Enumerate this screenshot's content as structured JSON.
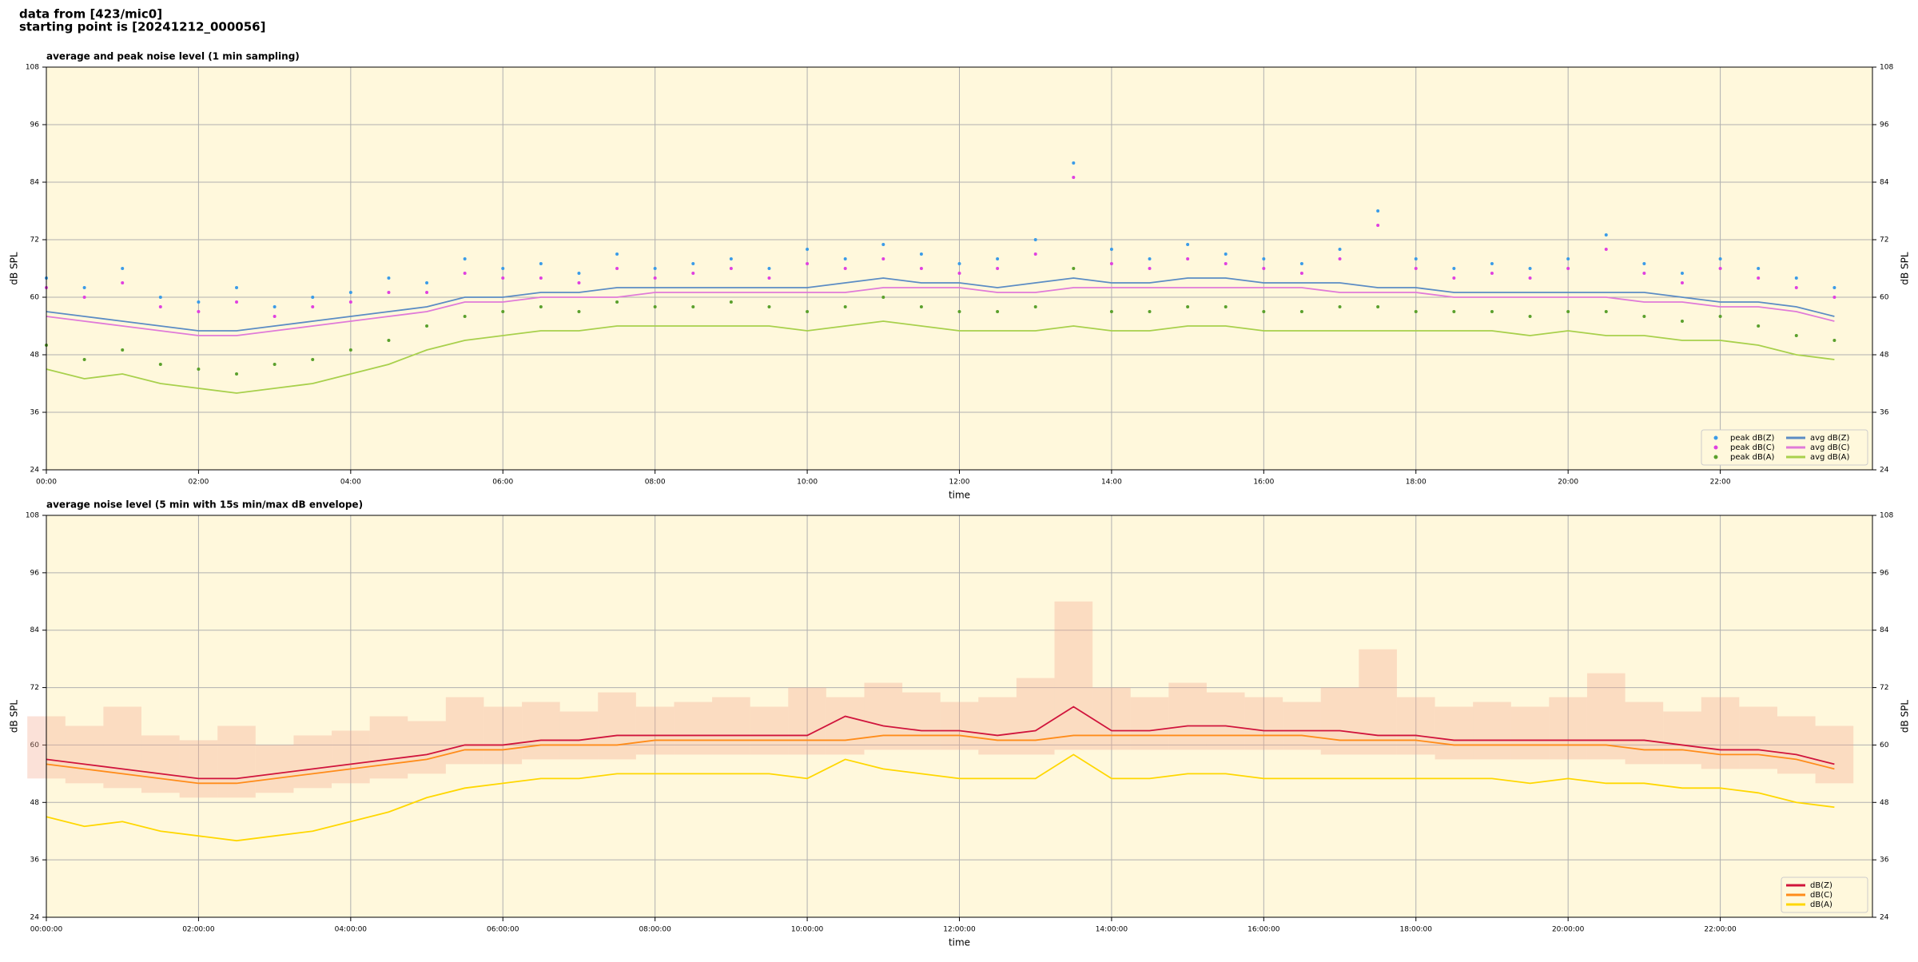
{
  "page_title": [
    "data from [423/mic0]",
    "starting point is [20241212_000056]"
  ],
  "chart_data": [
    {
      "type": "line",
      "title": "average and peak noise level (1 min sampling)",
      "xlabel": "time",
      "ylabel": "dB SPL",
      "xlim": [
        0,
        24
      ],
      "ylim": [
        24,
        108
      ],
      "yticks": [
        24,
        36,
        48,
        60,
        72,
        84,
        96,
        108
      ],
      "xticks": [
        {
          "value": 0,
          "label": "00:00"
        },
        {
          "value": 2,
          "label": "02:00"
        },
        {
          "value": 4,
          "label": "04:00"
        },
        {
          "value": 6,
          "label": "06:00"
        },
        {
          "value": 8,
          "label": "08:00"
        },
        {
          "value": 10,
          "label": "10:00"
        },
        {
          "value": 12,
          "label": "12:00"
        },
        {
          "value": 14,
          "label": "14:00"
        },
        {
          "value": 16,
          "label": "16:00"
        },
        {
          "value": 18,
          "label": "18:00"
        },
        {
          "value": 20,
          "label": "20:00"
        },
        {
          "value": 22,
          "label": "22:00"
        }
      ],
      "grid": true,
      "legend": "lower right",
      "x": [
        0,
        0.5,
        1,
        1.5,
        2,
        2.5,
        3,
        3.5,
        4,
        4.5,
        5,
        5.5,
        6,
        6.5,
        7,
        7.5,
        8,
        8.5,
        9,
        9.5,
        10,
        10.5,
        11,
        11.5,
        12,
        12.5,
        13,
        13.5,
        14,
        14.5,
        15,
        15.5,
        16,
        16.5,
        17,
        17.5,
        18,
        18.5,
        19,
        19.5,
        20,
        20.5,
        21,
        21.5,
        22,
        22.5,
        23,
        23.5
      ],
      "series": [
        {
          "name": "peak dB(Z)",
          "type": "scatter",
          "color": "#3a9be8",
          "values": [
            64,
            62,
            66,
            60,
            59,
            62,
            58,
            60,
            61,
            64,
            63,
            68,
            66,
            67,
            65,
            69,
            66,
            67,
            68,
            66,
            70,
            68,
            71,
            69,
            67,
            68,
            72,
            88,
            70,
            68,
            71,
            69,
            68,
            67,
            70,
            78,
            68,
            66,
            67,
            66,
            68,
            73,
            67,
            65,
            68,
            66,
            64,
            62
          ]
        },
        {
          "name": "peak dB(C)",
          "type": "scatter",
          "color": "#e040e0",
          "values": [
            62,
            60,
            63,
            58,
            57,
            59,
            56,
            58,
            59,
            61,
            61,
            65,
            64,
            64,
            63,
            66,
            64,
            65,
            66,
            64,
            67,
            66,
            68,
            66,
            65,
            66,
            69,
            85,
            67,
            66,
            68,
            67,
            66,
            65,
            68,
            75,
            66,
            64,
            65,
            64,
            66,
            70,
            65,
            63,
            66,
            64,
            62,
            60
          ]
        },
        {
          "name": "peak dB(A)",
          "type": "scatter",
          "color": "#5aa02c",
          "values": [
            50,
            47,
            49,
            46,
            45,
            44,
            46,
            47,
            49,
            51,
            54,
            56,
            57,
            58,
            57,
            59,
            58,
            58,
            59,
            58,
            57,
            58,
            60,
            58,
            57,
            57,
            58,
            66,
            57,
            57,
            58,
            58,
            57,
            57,
            58,
            58,
            57,
            57,
            57,
            56,
            57,
            57,
            56,
            55,
            56,
            54,
            52,
            51
          ]
        },
        {
          "name": "avg dB(Z)",
          "type": "line",
          "color": "#5b8cc4",
          "values": [
            57,
            56,
            55,
            54,
            53,
            53,
            54,
            55,
            56,
            57,
            58,
            60,
            60,
            61,
            61,
            62,
            62,
            62,
            62,
            62,
            62,
            63,
            64,
            63,
            63,
            62,
            63,
            64,
            63,
            63,
            64,
            64,
            63,
            63,
            63,
            62,
            62,
            61,
            61,
            61,
            61,
            61,
            61,
            60,
            59,
            59,
            58,
            56
          ]
        },
        {
          "name": "avg dB(C)",
          "type": "line",
          "color": "#e07ad8",
          "values": [
            56,
            55,
            54,
            53,
            52,
            52,
            53,
            54,
            55,
            56,
            57,
            59,
            59,
            60,
            60,
            60,
            61,
            61,
            61,
            61,
            61,
            61,
            62,
            62,
            62,
            61,
            61,
            62,
            62,
            62,
            62,
            62,
            62,
            62,
            61,
            61,
            61,
            60,
            60,
            60,
            60,
            60,
            59,
            59,
            58,
            58,
            57,
            55
          ]
        },
        {
          "name": "avg dB(A)",
          "type": "line",
          "color": "#a8d04c",
          "values": [
            45,
            43,
            44,
            42,
            41,
            40,
            41,
            42,
            44,
            46,
            49,
            51,
            52,
            53,
            53,
            54,
            54,
            54,
            54,
            54,
            53,
            54,
            55,
            54,
            53,
            53,
            53,
            54,
            53,
            53,
            54,
            54,
            53,
            53,
            53,
            53,
            53,
            53,
            53,
            52,
            53,
            52,
            52,
            51,
            51,
            50,
            48,
            47
          ]
        }
      ]
    },
    {
      "type": "line",
      "title": "average noise level (5 min with 15s min/max dB envelope)",
      "xlabel": "time",
      "ylabel": "dB SPL",
      "xlim": [
        0,
        24
      ],
      "ylim": [
        24,
        108
      ],
      "yticks": [
        24,
        36,
        48,
        60,
        72,
        84,
        96,
        108
      ],
      "xticks": [
        {
          "value": 0,
          "label": "00:00:00"
        },
        {
          "value": 2,
          "label": "02:00:00"
        },
        {
          "value": 4,
          "label": "04:00:00"
        },
        {
          "value": 6,
          "label": "06:00:00"
        },
        {
          "value": 8,
          "label": "08:00:00"
        },
        {
          "value": 10,
          "label": "10:00:00"
        },
        {
          "value": 12,
          "label": "12:00:00"
        },
        {
          "value": 14,
          "label": "14:00:00"
        },
        {
          "value": 16,
          "label": "16:00:00"
        },
        {
          "value": 18,
          "label": "18:00:00"
        },
        {
          "value": 20,
          "label": "20:00:00"
        },
        {
          "value": 22,
          "label": "22:00:00"
        }
      ],
      "grid": true,
      "legend": "lower right",
      "x": [
        0,
        0.5,
        1,
        1.5,
        2,
        2.5,
        3,
        3.5,
        4,
        4.5,
        5,
        5.5,
        6,
        6.5,
        7,
        7.5,
        8,
        8.5,
        9,
        9.5,
        10,
        10.5,
        11,
        11.5,
        12,
        12.5,
        13,
        13.5,
        14,
        14.5,
        15,
        15.5,
        16,
        16.5,
        17,
        17.5,
        18,
        18.5,
        19,
        19.5,
        20,
        20.5,
        21,
        21.5,
        22,
        22.5,
        23,
        23.5
      ],
      "envelope": {
        "color": "#f4a98f",
        "lower": [
          53,
          52,
          51,
          50,
          49,
          49,
          50,
          51,
          52,
          53,
          54,
          56,
          56,
          57,
          57,
          57,
          58,
          58,
          58,
          58,
          58,
          58,
          59,
          59,
          59,
          58,
          58,
          59,
          59,
          59,
          59,
          59,
          59,
          59,
          58,
          58,
          58,
          57,
          57,
          57,
          57,
          57,
          56,
          56,
          55,
          55,
          54,
          52
        ],
        "upper": [
          66,
          64,
          68,
          62,
          61,
          64,
          60,
          62,
          63,
          66,
          65,
          70,
          68,
          69,
          67,
          71,
          68,
          69,
          70,
          68,
          72,
          70,
          73,
          71,
          69,
          70,
          74,
          90,
          72,
          70,
          73,
          71,
          70,
          69,
          72,
          80,
          70,
          68,
          69,
          68,
          70,
          75,
          69,
          67,
          70,
          68,
          66,
          64
        ]
      },
      "series": [
        {
          "name": "dB(Z)",
          "type": "line",
          "color": "#d0143c",
          "values": [
            57,
            56,
            55,
            54,
            53,
            53,
            54,
            55,
            56,
            57,
            58,
            60,
            60,
            61,
            61,
            62,
            62,
            62,
            62,
            62,
            62,
            66,
            64,
            63,
            63,
            62,
            63,
            68,
            63,
            63,
            64,
            64,
            63,
            63,
            63,
            62,
            62,
            61,
            61,
            61,
            61,
            61,
            61,
            60,
            59,
            59,
            58,
            56
          ]
        },
        {
          "name": "dB(C)",
          "type": "line",
          "color": "#ff8c1a",
          "values": [
            56,
            55,
            54,
            53,
            52,
            52,
            53,
            54,
            55,
            56,
            57,
            59,
            59,
            60,
            60,
            60,
            61,
            61,
            61,
            61,
            61,
            61,
            62,
            62,
            62,
            61,
            61,
            62,
            62,
            62,
            62,
            62,
            62,
            62,
            61,
            61,
            61,
            60,
            60,
            60,
            60,
            60,
            59,
            59,
            58,
            58,
            57,
            55
          ]
        },
        {
          "name": "dB(A)",
          "type": "line",
          "color": "#ffd700",
          "values": [
            45,
            43,
            44,
            42,
            41,
            40,
            41,
            42,
            44,
            46,
            49,
            51,
            52,
            53,
            53,
            54,
            54,
            54,
            54,
            54,
            53,
            57,
            55,
            54,
            53,
            53,
            53,
            58,
            53,
            53,
            54,
            54,
            53,
            53,
            53,
            53,
            53,
            53,
            53,
            52,
            53,
            52,
            52,
            51,
            51,
            50,
            48,
            47
          ]
        }
      ]
    }
  ]
}
